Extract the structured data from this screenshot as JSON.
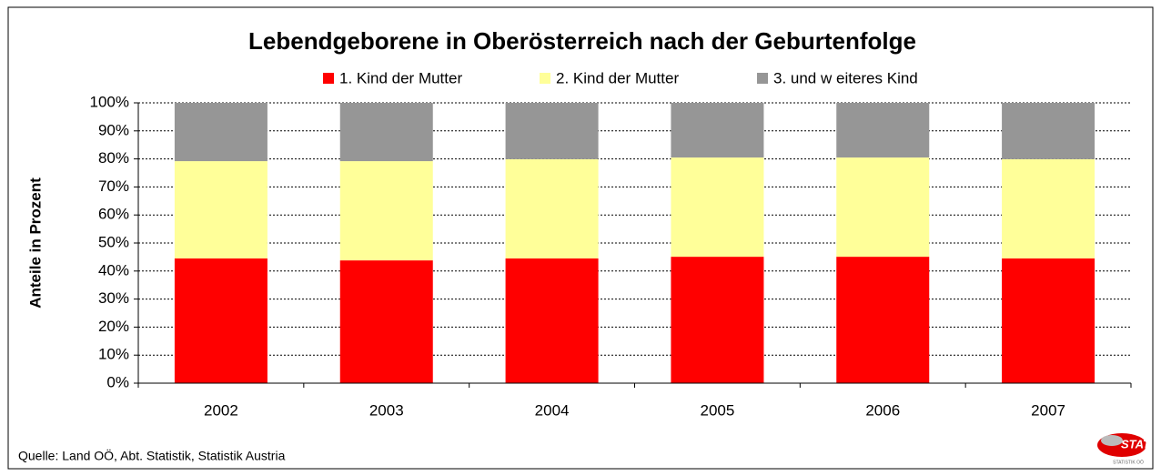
{
  "chart_data": {
    "type": "stacked_bar",
    "title": "Lebendgeborene in Oberösterreich nach der Geburtenfolge",
    "ylabel": "Anteile in Prozent",
    "categories": [
      "2002",
      "2003",
      "2004",
      "2005",
      "2006",
      "2007"
    ],
    "series": [
      {
        "name": "1. Kind der Mutter",
        "color": "#ff0000",
        "values": [
          44.5,
          43.8,
          44.5,
          45.1,
          45.1,
          44.5
        ]
      },
      {
        "name": "2. Kind der Mutter",
        "color": "#ffff99",
        "values": [
          34.7,
          35.4,
          35.4,
          35.4,
          35.4,
          35.4
        ]
      },
      {
        "name": "3. und w eiteres Kind",
        "color": "#969696",
        "values": [
          20.8,
          20.8,
          20.1,
          19.5,
          19.5,
          20.1
        ]
      }
    ],
    "ylim": [
      0,
      100
    ],
    "yticks": [
      {
        "value": 0,
        "label": "0%"
      },
      {
        "value": 10,
        "label": "10%"
      },
      {
        "value": 20,
        "label": "20%"
      },
      {
        "value": 30,
        "label": "30%"
      },
      {
        "value": 40,
        "label": "40%"
      },
      {
        "value": 50,
        "label": "50%"
      },
      {
        "value": 60,
        "label": "60%"
      },
      {
        "value": 70,
        "label": "70%"
      },
      {
        "value": 80,
        "label": "80%"
      },
      {
        "value": 90,
        "label": "90%"
      },
      {
        "value": 100,
        "label": "100%"
      }
    ],
    "grid": true,
    "legend": "top",
    "source": "Quelle: Land OÖ, Abt. Statistik, Statistik Austria",
    "logo": {
      "text": "STAT",
      "subtext": "STATISTIK OÖ"
    }
  }
}
